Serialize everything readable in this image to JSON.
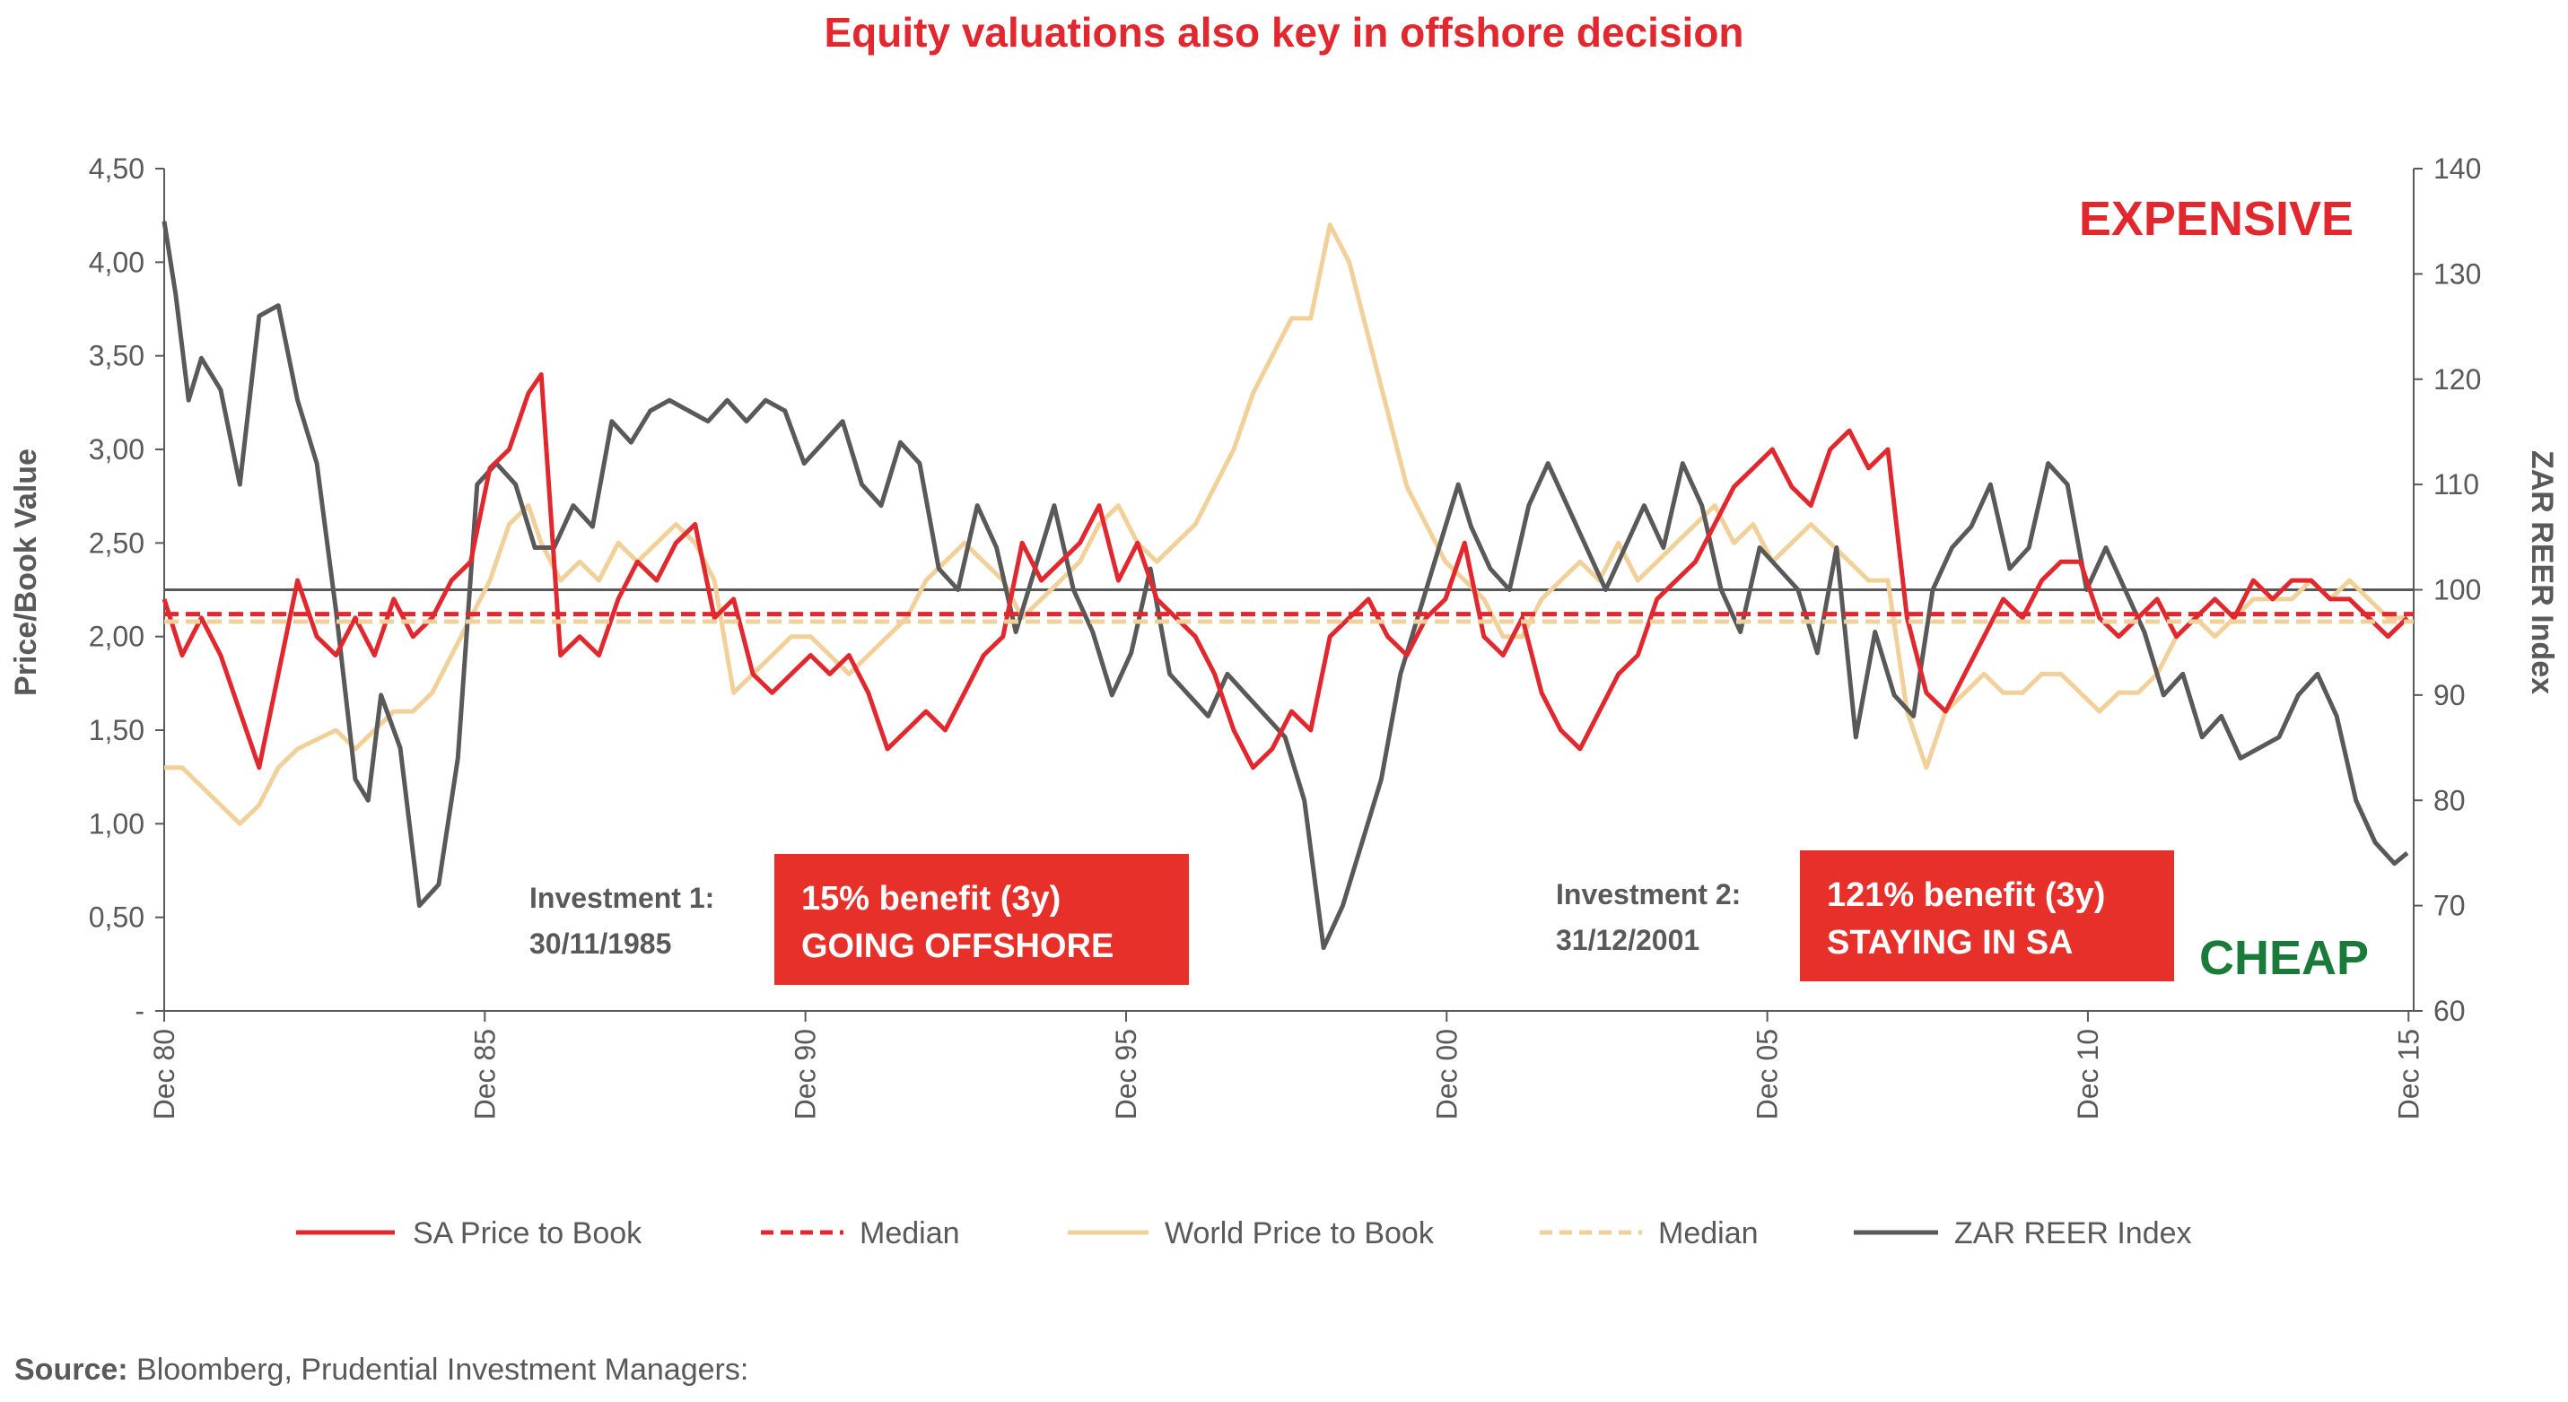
{
  "chart_data": {
    "type": "line",
    "title": "Equity valuations also key in offshore decision",
    "ylabel_left": "Price/Book Value",
    "ylabel_right": "ZAR REER Index",
    "x_ticks": [
      "Dec 80",
      "Dec 85",
      "Dec 90",
      "Dec 95",
      "Dec 00",
      "Dec 05",
      "Dec 10",
      "Dec 15"
    ],
    "x_range": [
      1980.92,
      2016.0
    ],
    "left_axis": {
      "ylim": [
        0,
        4.5
      ],
      "ticks": [
        "-",
        "0,50",
        "1,00",
        "1,50",
        "2,00",
        "2,50",
        "3,00",
        "3,50",
        "4,00",
        "4,50"
      ]
    },
    "right_axis": {
      "ylim": [
        60,
        140
      ],
      "ticks": [
        "60",
        "70",
        "80",
        "90",
        "100",
        "110",
        "120",
        "130",
        "140"
      ]
    },
    "reference_line_right": 100,
    "series": [
      {
        "name": "SA Price to Book",
        "axis": "left",
        "style": "solid",
        "color": "#e0282e",
        "x": [
          1980.92,
          1981.2,
          1981.5,
          1981.8,
          1982.1,
          1982.4,
          1982.7,
          1983.0,
          1983.3,
          1983.6,
          1983.9,
          1984.2,
          1984.5,
          1984.8,
          1985.1,
          1985.4,
          1985.7,
          1986.0,
          1986.3,
          1986.6,
          1986.8,
          1987.1,
          1987.4,
          1987.7,
          1988.0,
          1988.3,
          1988.6,
          1988.9,
          1989.2,
          1989.5,
          1989.8,
          1990.1,
          1990.4,
          1990.7,
          1991.0,
          1991.3,
          1991.6,
          1991.9,
          1992.2,
          1992.5,
          1992.8,
          1993.1,
          1993.4,
          1993.7,
          1994.0,
          1994.3,
          1994.6,
          1994.9,
          1995.2,
          1995.5,
          1995.8,
          1996.1,
          1996.4,
          1996.7,
          1997.0,
          1997.3,
          1997.6,
          1997.9,
          1998.2,
          1998.5,
          1998.8,
          1999.1,
          1999.4,
          1999.7,
          2000.0,
          2000.3,
          2000.6,
          2000.9,
          2001.2,
          2001.5,
          2001.8,
          2002.1,
          2002.4,
          2002.7,
          2003.0,
          2003.3,
          2003.6,
          2003.9,
          2004.2,
          2004.5,
          2004.8,
          2005.1,
          2005.4,
          2005.7,
          2006.0,
          2006.3,
          2006.6,
          2006.9,
          2007.2,
          2007.5,
          2007.8,
          2008.1,
          2008.4,
          2008.7,
          2009.0,
          2009.3,
          2009.6,
          2009.9,
          2010.2,
          2010.5,
          2010.8,
          2011.1,
          2011.4,
          2011.7,
          2012.0,
          2012.3,
          2012.6,
          2012.9,
          2013.2,
          2013.5,
          2013.8,
          2014.1,
          2014.4,
          2014.7,
          2015.0,
          2015.3,
          2015.6,
          2015.9
        ],
        "y": [
          2.2,
          1.9,
          2.1,
          1.9,
          1.6,
          1.3,
          1.8,
          2.3,
          2.0,
          1.9,
          2.1,
          1.9,
          2.2,
          2.0,
          2.1,
          2.3,
          2.4,
          2.9,
          3.0,
          3.3,
          3.4,
          1.9,
          2.0,
          1.9,
          2.2,
          2.4,
          2.3,
          2.5,
          2.6,
          2.1,
          2.2,
          1.8,
          1.7,
          1.8,
          1.9,
          1.8,
          1.9,
          1.7,
          1.4,
          1.5,
          1.6,
          1.5,
          1.7,
          1.9,
          2.0,
          2.5,
          2.3,
          2.4,
          2.5,
          2.7,
          2.3,
          2.5,
          2.2,
          2.1,
          2.0,
          1.8,
          1.5,
          1.3,
          1.4,
          1.6,
          1.5,
          2.0,
          2.1,
          2.2,
          2.0,
          1.9,
          2.1,
          2.2,
          2.5,
          2.0,
          1.9,
          2.1,
          1.7,
          1.5,
          1.4,
          1.6,
          1.8,
          1.9,
          2.2,
          2.3,
          2.4,
          2.6,
          2.8,
          2.9,
          3.0,
          2.8,
          2.7,
          3.0,
          3.1,
          2.9,
          3.0,
          2.1,
          1.7,
          1.6,
          1.8,
          2.0,
          2.2,
          2.1,
          2.3,
          2.4,
          2.4,
          2.1,
          2.0,
          2.1,
          2.2,
          2.0,
          2.1,
          2.2,
          2.1,
          2.3,
          2.2,
          2.3,
          2.3,
          2.2,
          2.2,
          2.1,
          2.0,
          2.1
        ]
      },
      {
        "name": "Median",
        "axis": "left",
        "style": "dashed",
        "color": "#e0282e",
        "x": [
          1980.92,
          2016.0
        ],
        "y": [
          2.12,
          2.12
        ]
      },
      {
        "name": "World Price to Book",
        "axis": "left",
        "style": "solid",
        "color": "#f2d09a",
        "x": [
          1980.92,
          1981.2,
          1981.5,
          1981.8,
          1982.1,
          1982.4,
          1982.7,
          1983.0,
          1983.3,
          1983.6,
          1983.9,
          1984.2,
          1984.5,
          1984.8,
          1985.1,
          1985.4,
          1985.7,
          1986.0,
          1986.3,
          1986.6,
          1986.8,
          1987.1,
          1987.4,
          1987.7,
          1988.0,
          1988.3,
          1988.6,
          1988.9,
          1989.2,
          1989.5,
          1989.8,
          1990.1,
          1990.4,
          1990.7,
          1991.0,
          1991.3,
          1991.6,
          1991.9,
          1992.2,
          1992.5,
          1992.8,
          1993.1,
          1993.4,
          1993.7,
          1994.0,
          1994.3,
          1994.6,
          1994.9,
          1995.2,
          1995.5,
          1995.8,
          1996.1,
          1996.4,
          1996.7,
          1997.0,
          1997.3,
          1997.6,
          1997.9,
          1998.2,
          1998.5,
          1998.8,
          1999.1,
          1999.4,
          1999.7,
          2000.0,
          2000.3,
          2000.6,
          2000.9,
          2001.2,
          2001.5,
          2001.8,
          2002.1,
          2002.4,
          2002.7,
          2003.0,
          2003.3,
          2003.6,
          2003.9,
          2004.2,
          2004.5,
          2004.8,
          2005.1,
          2005.4,
          2005.7,
          2006.0,
          2006.3,
          2006.6,
          2006.9,
          2007.2,
          2007.5,
          2007.8,
          2008.1,
          2008.4,
          2008.7,
          2009.0,
          2009.3,
          2009.6,
          2009.9,
          2010.2,
          2010.5,
          2010.8,
          2011.1,
          2011.4,
          2011.7,
          2012.0,
          2012.3,
          2012.6,
          2012.9,
          2013.2,
          2013.5,
          2013.8,
          2014.1,
          2014.4,
          2014.7,
          2015.0,
          2015.3,
          2015.6,
          2015.9
        ],
        "y": [
          1.3,
          1.3,
          1.2,
          1.1,
          1.0,
          1.1,
          1.3,
          1.4,
          1.45,
          1.5,
          1.4,
          1.5,
          1.6,
          1.6,
          1.7,
          1.9,
          2.1,
          2.3,
          2.6,
          2.7,
          2.5,
          2.3,
          2.4,
          2.3,
          2.5,
          2.4,
          2.5,
          2.6,
          2.5,
          2.3,
          1.7,
          1.8,
          1.9,
          2.0,
          2.0,
          1.9,
          1.8,
          1.9,
          2.0,
          2.1,
          2.3,
          2.4,
          2.5,
          2.4,
          2.3,
          2.1,
          2.2,
          2.3,
          2.4,
          2.6,
          2.7,
          2.5,
          2.4,
          2.5,
          2.6,
          2.8,
          3.0,
          3.3,
          3.5,
          3.7,
          3.7,
          4.2,
          4.0,
          3.6,
          3.2,
          2.8,
          2.6,
          2.4,
          2.3,
          2.2,
          2.0,
          2.0,
          2.2,
          2.3,
          2.4,
          2.3,
          2.5,
          2.3,
          2.4,
          2.5,
          2.6,
          2.7,
          2.5,
          2.6,
          2.4,
          2.5,
          2.6,
          2.5,
          2.4,
          2.3,
          2.3,
          1.6,
          1.3,
          1.6,
          1.7,
          1.8,
          1.7,
          1.7,
          1.8,
          1.8,
          1.7,
          1.6,
          1.7,
          1.7,
          1.8,
          2.0,
          2.1,
          2.0,
          2.1,
          2.2,
          2.2,
          2.2,
          2.3,
          2.2,
          2.3,
          2.2,
          2.1,
          2.1
        ]
      },
      {
        "name": "Median",
        "axis": "left",
        "style": "dashed",
        "color": "#f2d09a",
        "x": [
          1980.92,
          2016.0
        ],
        "y": [
          2.08,
          2.08
        ]
      },
      {
        "name": "ZAR REER Index",
        "axis": "right",
        "style": "solid",
        "color": "#595959",
        "x": [
          1980.92,
          1981.1,
          1981.3,
          1981.5,
          1981.8,
          1982.1,
          1982.4,
          1982.7,
          1983.0,
          1983.3,
          1983.6,
          1983.9,
          1984.1,
          1984.3,
          1984.6,
          1984.9,
          1985.2,
          1985.5,
          1985.8,
          1986.1,
          1986.4,
          1986.7,
          1987.0,
          1987.3,
          1987.6,
          1987.9,
          1988.2,
          1988.5,
          1988.8,
          1989.1,
          1989.4,
          1989.7,
          1990.0,
          1990.3,
          1990.6,
          1990.9,
          1991.2,
          1991.5,
          1991.8,
          1992.1,
          1992.4,
          1992.7,
          1993.0,
          1993.3,
          1993.6,
          1993.9,
          1994.2,
          1994.5,
          1994.8,
          1995.1,
          1995.4,
          1995.7,
          1996.0,
          1996.3,
          1996.6,
          1996.9,
          1997.2,
          1997.5,
          1997.8,
          1998.1,
          1998.4,
          1998.7,
          1999.0,
          1999.3,
          1999.6,
          1999.9,
          2000.2,
          2000.5,
          2000.8,
          2001.1,
          2001.3,
          2001.6,
          2001.9,
          2002.2,
          2002.5,
          2002.8,
          2003.1,
          2003.4,
          2003.7,
          2004.0,
          2004.3,
          2004.6,
          2004.9,
          2005.2,
          2005.5,
          2005.8,
          2006.1,
          2006.4,
          2006.7,
          2007.0,
          2007.3,
          2007.6,
          2007.9,
          2008.2,
          2008.5,
          2008.8,
          2009.1,
          2009.4,
          2009.7,
          2010.0,
          2010.3,
          2010.6,
          2010.9,
          2011.2,
          2011.5,
          2011.8,
          2012.1,
          2012.4,
          2012.7,
          2013.0,
          2013.3,
          2013.6,
          2013.9,
          2014.2,
          2014.5,
          2014.8,
          2015.1,
          2015.4,
          2015.7,
          2015.9
        ],
        "y": [
          135,
          128,
          118,
          122,
          119,
          110,
          126,
          127,
          118,
          112,
          98,
          82,
          80,
          90,
          85,
          70,
          72,
          84,
          110,
          112,
          110,
          104,
          104,
          108,
          106,
          116,
          114,
          117,
          118,
          117,
          116,
          118,
          116,
          118,
          117,
          112,
          114,
          116,
          110,
          108,
          114,
          112,
          102,
          100,
          108,
          104,
          96,
          102,
          108,
          100,
          96,
          90,
          94,
          102,
          92,
          90,
          88,
          92,
          90,
          88,
          86,
          80,
          66,
          70,
          76,
          82,
          92,
          98,
          104,
          110,
          106,
          102,
          100,
          108,
          112,
          108,
          104,
          100,
          104,
          108,
          104,
          112,
          108,
          100,
          96,
          104,
          102,
          100,
          94,
          104,
          86,
          96,
          90,
          88,
          100,
          104,
          106,
          110,
          102,
          104,
          112,
          110,
          100,
          104,
          100,
          96,
          90,
          92,
          86,
          88,
          84,
          85,
          86,
          90,
          92,
          88,
          80,
          76,
          74,
          75
        ]
      }
    ],
    "legend": {
      "placement": "bottom",
      "entries": [
        "SA Price to Book",
        "Median",
        "World Price to Book",
        "Median",
        "ZAR REER Index"
      ]
    }
  },
  "annotations": {
    "expensive": "EXPENSIVE",
    "cheap": "CHEAP",
    "investment1": {
      "label_line1": "Investment 1:",
      "label_line2": "30/11/1985",
      "box_line1": "15% benefit (3y)",
      "box_line2": "GOING OFFSHORE"
    },
    "investment2": {
      "label_line1": "Investment 2:",
      "label_line2": "31/12/2001",
      "box_line1": "121% benefit (3y)",
      "box_line2": "STAYING IN SA"
    }
  },
  "source": {
    "label": "Source:",
    "text": " Bloomberg, Prudential Investment Managers:"
  },
  "colors": {
    "sa": "#e0282e",
    "world": "#f2d09a",
    "zar": "#595959",
    "cheap": "#1a7a3a",
    "box": "#e8302a"
  }
}
